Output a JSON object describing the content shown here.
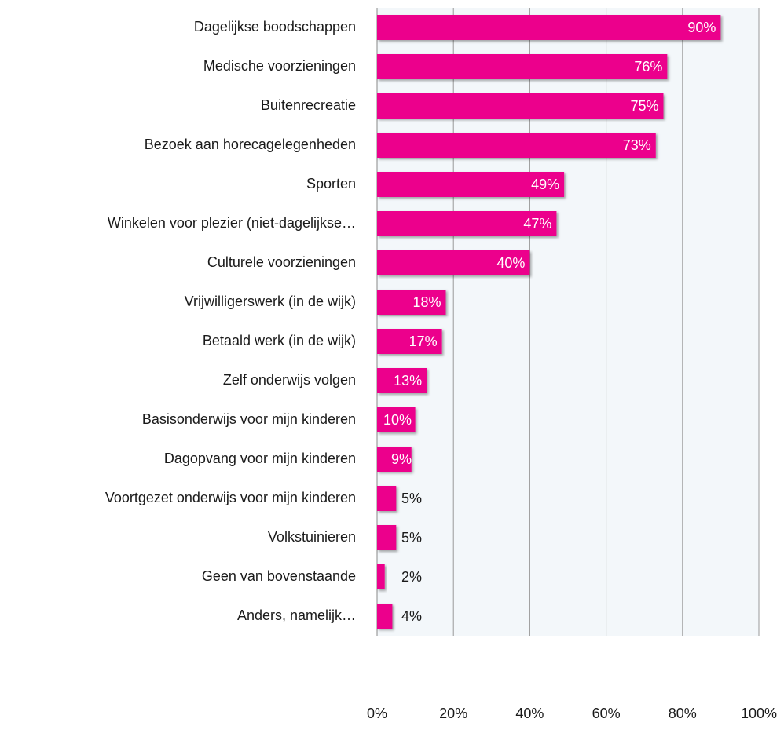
{
  "chart_data": {
    "type": "bar",
    "orientation": "horizontal",
    "categories": [
      "Dagelijkse boodschappen",
      "Medische voorzieningen",
      "Buitenrecreatie",
      "Bezoek aan horecagelegenheden",
      "Sporten",
      "Winkelen voor plezier (niet-dagelijkse…",
      "Culturele voorzieningen",
      "Vrijwilligerswerk (in de wijk)",
      "Betaald werk (in de wijk)",
      "Zelf onderwijs volgen",
      "Basisonderwijs voor mijn kinderen",
      "Dagopvang voor mijn kinderen",
      "Voortgezet onderwijs voor mijn kinderen",
      "Volkstuinieren",
      "Geen van bovenstaande",
      "Anders, namelijk…"
    ],
    "values": [
      90,
      76,
      75,
      73,
      49,
      47,
      40,
      18,
      17,
      13,
      10,
      9,
      5,
      5,
      2,
      4
    ],
    "value_labels": [
      "90%",
      "76%",
      "75%",
      "73%",
      "49%",
      "47%",
      "40%",
      "18%",
      "17%",
      "13%",
      "10%",
      "9%",
      "5%",
      "5%",
      "2%",
      "4%"
    ],
    "color": "#ec008c",
    "xlim": [
      0,
      100
    ],
    "xticks": [
      {
        "value": 0,
        "label": "0%"
      },
      {
        "value": 20,
        "label": "20%"
      },
      {
        "value": 40,
        "label": "40%"
      },
      {
        "value": 60,
        "label": "60%"
      },
      {
        "value": 80,
        "label": "80%"
      },
      {
        "value": 100,
        "label": "100%"
      }
    ],
    "grid": true
  }
}
